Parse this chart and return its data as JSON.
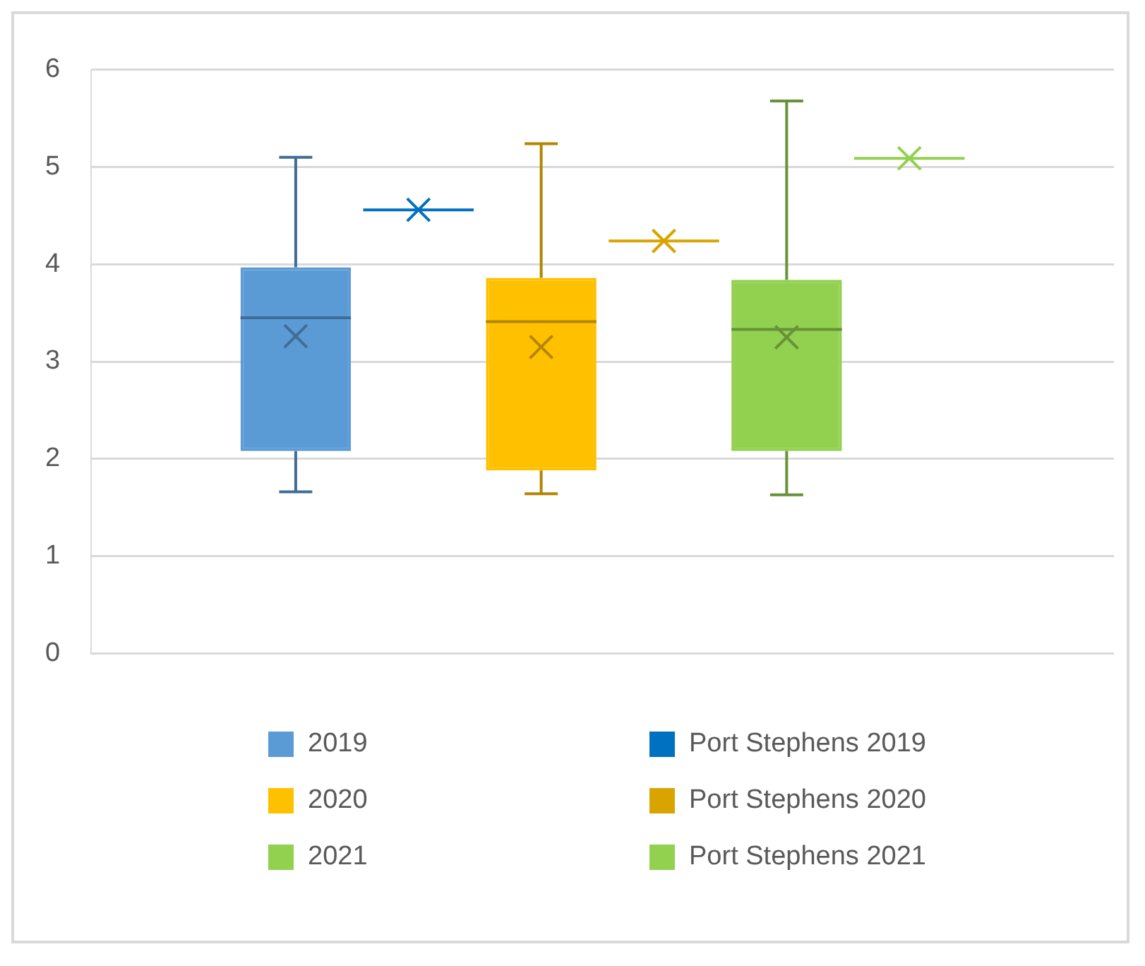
{
  "chart_data": {
    "type": "box",
    "categories": [
      null
    ],
    "ylim": [
      0,
      6
    ],
    "yticks": [
      0,
      1,
      2,
      3,
      4,
      5,
      6
    ],
    "grid": "y",
    "legend": "bottom",
    "marker": "cross",
    "series": [
      {
        "name": "2019",
        "color": "#5b9bd5",
        "boxes": [
          {
            "low": 1.66,
            "q1": 2.08,
            "median": 3.45,
            "q3": 3.97,
            "high": 5.1,
            "mean": 3.26
          }
        ]
      },
      {
        "name": "Port Stephens 2019",
        "color": "#0070c0",
        "boxes": [
          {
            "low": 4.56,
            "q1": 4.56,
            "median": 4.56,
            "q3": 4.56,
            "high": 4.56,
            "mean": 4.56
          }
        ]
      },
      {
        "name": "2020",
        "color": "#ffc000",
        "boxes": [
          {
            "low": 1.64,
            "q1": 1.88,
            "median": 3.41,
            "q3": 3.86,
            "high": 5.24,
            "mean": 3.15
          }
        ]
      },
      {
        "name": "Port Stephens 2020",
        "color": "#d9a400",
        "boxes": [
          {
            "low": 4.24,
            "q1": 4.24,
            "median": 4.24,
            "q3": 4.24,
            "high": 4.24,
            "mean": 4.24
          }
        ]
      },
      {
        "name": "2021",
        "color": "#92d050",
        "boxes": [
          {
            "low": 1.63,
            "q1": 2.08,
            "median": 3.33,
            "q3": 3.84,
            "high": 5.68,
            "mean": 3.25
          }
        ]
      },
      {
        "name": "Port Stephens 2021",
        "color": "#92d050",
        "boxes": [
          {
            "low": 5.09,
            "q1": 5.09,
            "median": 5.09,
            "q3": 5.09,
            "high": 5.09,
            "mean": 5.09
          }
        ]
      }
    ]
  }
}
